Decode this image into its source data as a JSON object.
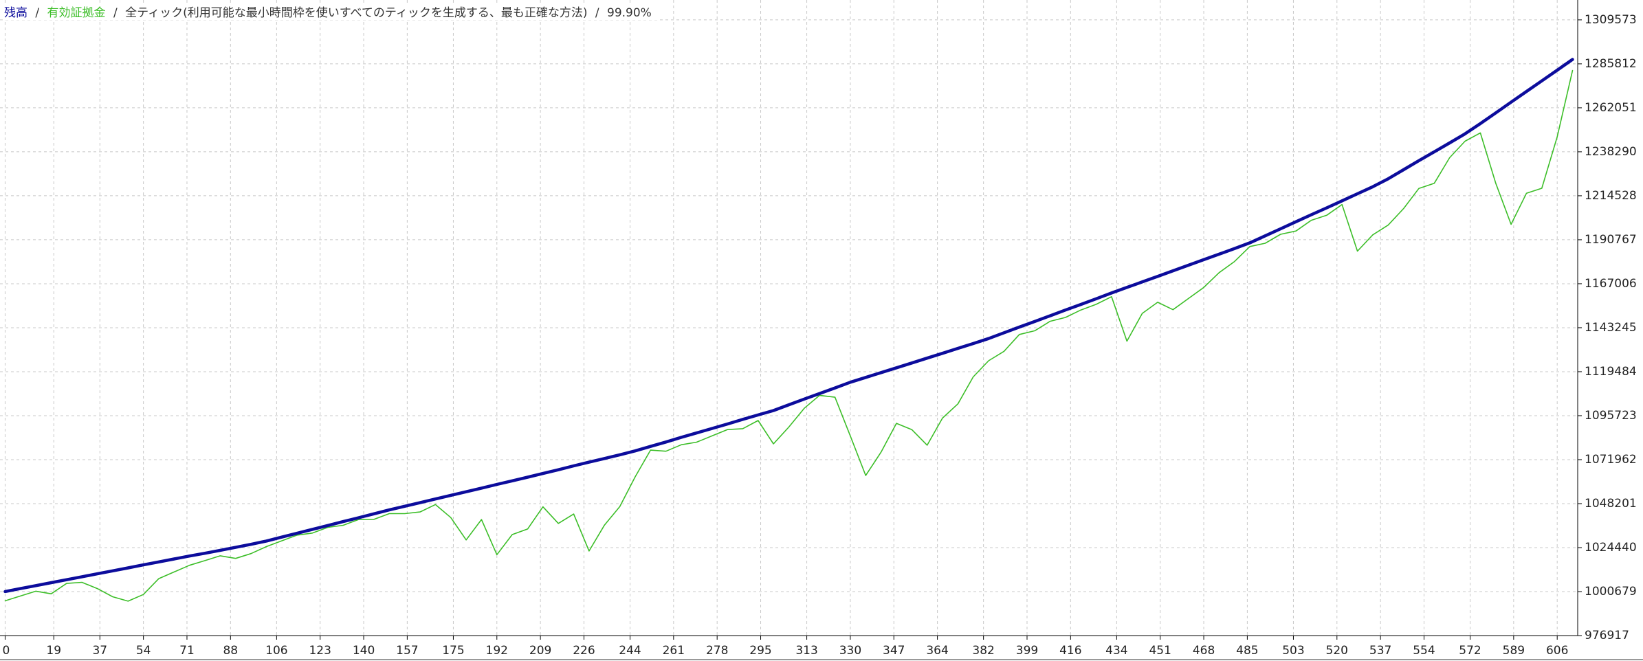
{
  "chart_data": {
    "type": "line",
    "separator": "/",
    "mode": "全ティック(利用可能な最小時間枠を使いすべてのティックを生成する、最も正確な方法)",
    "quality": "99.90%",
    "x": [
      0,
      6,
      12,
      18,
      24,
      30,
      36,
      42,
      48,
      54,
      60,
      66,
      72,
      78,
      84,
      90,
      96,
      102,
      108,
      114,
      120,
      126,
      132,
      138,
      144,
      150,
      156,
      162,
      168,
      174,
      180,
      186,
      192,
      198,
      204,
      210,
      216,
      222,
      228,
      234,
      240,
      246,
      252,
      258,
      264,
      270,
      276,
      282,
      288,
      294,
      300,
      306,
      312,
      318,
      324,
      330,
      336,
      342,
      348,
      354,
      360,
      366,
      372,
      378,
      384,
      390,
      396,
      402,
      408,
      414,
      420,
      426,
      432,
      438,
      444,
      450,
      456,
      462,
      468,
      474,
      480,
      486,
      492,
      498,
      504,
      510,
      516,
      522,
      528,
      534,
      540,
      546,
      552,
      558,
      564,
      570,
      576,
      582,
      588,
      594,
      600,
      606,
      612
    ],
    "series": [
      {
        "name": "有効証拠金",
        "color": "#3cbe28",
        "width": 1.6,
        "values": [
          995700,
          998300,
          1000900,
          999500,
          1005100,
          1005700,
          1002300,
          997900,
          995500,
          999100,
          1007700,
          1011300,
          1014900,
          1017400,
          1020000,
          1018600,
          1021200,
          1025000,
          1028100,
          1031200,
          1032300,
          1035400,
          1036500,
          1039600,
          1039700,
          1042800,
          1042800,
          1043700,
          1047700,
          1040700,
          1028600,
          1039600,
          1020600,
          1031500,
          1034500,
          1046500,
          1037500,
          1042600,
          1022600,
          1036600,
          1046600,
          1062700,
          1077100,
          1076500,
          1080000,
          1081400,
          1084800,
          1088200,
          1088700,
          1093100,
          1080500,
          1089600,
          1099700,
          1106700,
          1105700,
          1084800,
          1063400,
          1076000,
          1091600,
          1088200,
          1079800,
          1094400,
          1102100,
          1116700,
          1125400,
          1130500,
          1139600,
          1141600,
          1146700,
          1148800,
          1152800,
          1155900,
          1160000,
          1136000,
          1151000,
          1157000,
          1153000,
          1159000,
          1165000,
          1173000,
          1179000,
          1187100,
          1188900,
          1193700,
          1195500,
          1201300,
          1204000,
          1209800,
          1184600,
          1193400,
          1198700,
          1207600,
          1218500,
          1221300,
          1235100,
          1244000,
          1248500,
          1221300,
          1199100,
          1215900,
          1218600,
          1246400,
          1282200
        ]
      },
      {
        "name": "残高",
        "color": "#0c0c9c",
        "width": 4.5,
        "values": [
          1000700,
          1002300,
          1003900,
          1005500,
          1007100,
          1008700,
          1010300,
          1011900,
          1013500,
          1015100,
          1016700,
          1018300,
          1019900,
          1021400,
          1023000,
          1024600,
          1026200,
          1028000,
          1030100,
          1032200,
          1034300,
          1036400,
          1038500,
          1040600,
          1042700,
          1044800,
          1046800,
          1048700,
          1050700,
          1052700,
          1054600,
          1056600,
          1058600,
          1060500,
          1062500,
          1064500,
          1066500,
          1068600,
          1070600,
          1072600,
          1074600,
          1076700,
          1079100,
          1081500,
          1084000,
          1086400,
          1088800,
          1091200,
          1093700,
          1096100,
          1098500,
          1101600,
          1104700,
          1107700,
          1110700,
          1113800,
          1116400,
          1119000,
          1121600,
          1124200,
          1126800,
          1129400,
          1132100,
          1134700,
          1137400,
          1140500,
          1143600,
          1146600,
          1149700,
          1152800,
          1155800,
          1158900,
          1162000,
          1165000,
          1168000,
          1171000,
          1174000,
          1177000,
          1180000,
          1183000,
          1186000,
          1189100,
          1192900,
          1196700,
          1200500,
          1204300,
          1208000,
          1211800,
          1215600,
          1219400,
          1223700,
          1228600,
          1233500,
          1238300,
          1243100,
          1248000,
          1253500,
          1259300,
          1265100,
          1270900,
          1276600,
          1282400,
          1288200
        ]
      }
    ],
    "xlim": [
      -2,
      614
    ],
    "xticks": [
      0,
      19,
      37,
      54,
      71,
      88,
      106,
      123,
      140,
      157,
      175,
      192,
      209,
      226,
      244,
      261,
      278,
      295,
      313,
      330,
      347,
      364,
      382,
      399,
      416,
      434,
      451,
      468,
      485,
      503,
      520,
      537,
      554,
      572,
      589,
      606
    ],
    "ylim": [
      976917,
      1320300
    ],
    "yticks": [
      976917,
      1000679,
      1024440,
      1048201,
      1071962,
      1095723,
      1119484,
      1143245,
      1167006,
      1190767,
      1214528,
      1238290,
      1262051,
      1285812,
      1309573
    ],
    "grid": true
  }
}
